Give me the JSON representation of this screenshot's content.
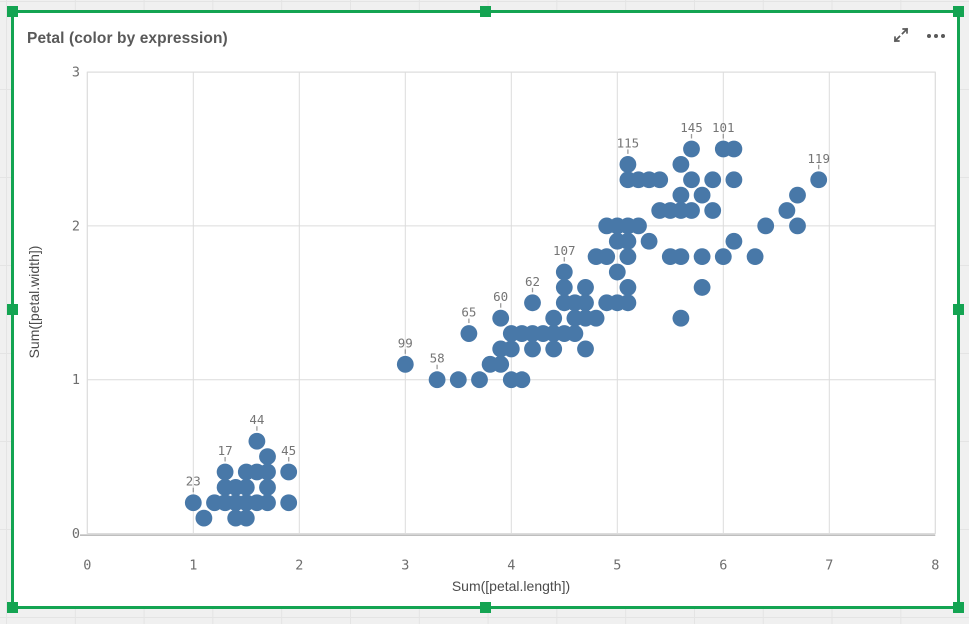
{
  "colors": {
    "selection_green": "#14a452",
    "point_blue": "#4878a8",
    "title_gray": "#595959",
    "gridline_gray": "#dcdcdc",
    "axis_line_gray": "#a9a9a9"
  },
  "chart": {
    "title": "Petal (color by expression)",
    "toolbar_icons": [
      "expand",
      "more-menu"
    ]
  },
  "chart_data": {
    "type": "scatter",
    "title": "Petal (color by expression)",
    "xlabel": "Sum([petal.length])",
    "ylabel": "Sum([petal.width])",
    "xlim": [
      0,
      8
    ],
    "ylim": [
      0,
      3
    ],
    "xticks": [
      0,
      1,
      2,
      3,
      4,
      5,
      6,
      7,
      8
    ],
    "yticks": [
      0,
      1,
      2,
      3
    ],
    "grid": true,
    "point_color": "#4878a8",
    "point_radius": 8.4,
    "points": [
      {
        "x": 1.0,
        "y": 0.2,
        "label": "23"
      },
      {
        "x": 1.1,
        "y": 0.1
      },
      {
        "x": 1.2,
        "y": 0.2
      },
      {
        "x": 1.3,
        "y": 0.2
      },
      {
        "x": 1.3,
        "y": 0.3
      },
      {
        "x": 1.3,
        "y": 0.4,
        "label": "17"
      },
      {
        "x": 1.4,
        "y": 0.1
      },
      {
        "x": 1.4,
        "y": 0.2
      },
      {
        "x": 1.4,
        "y": 0.3
      },
      {
        "x": 1.5,
        "y": 0.1
      },
      {
        "x": 1.5,
        "y": 0.2
      },
      {
        "x": 1.5,
        "y": 0.3
      },
      {
        "x": 1.5,
        "y": 0.4
      },
      {
        "x": 1.6,
        "y": 0.2
      },
      {
        "x": 1.6,
        "y": 0.4
      },
      {
        "x": 1.6,
        "y": 0.6,
        "label": "44"
      },
      {
        "x": 1.7,
        "y": 0.2
      },
      {
        "x": 1.7,
        "y": 0.3
      },
      {
        "x": 1.7,
        "y": 0.4
      },
      {
        "x": 1.7,
        "y": 0.5
      },
      {
        "x": 1.9,
        "y": 0.2
      },
      {
        "x": 1.9,
        "y": 0.4,
        "label": "45"
      },
      {
        "x": 3.0,
        "y": 1.1,
        "label": "99"
      },
      {
        "x": 3.3,
        "y": 1.0,
        "label": "58"
      },
      {
        "x": 3.5,
        "y": 1.0
      },
      {
        "x": 3.6,
        "y": 1.3,
        "label": "65"
      },
      {
        "x": 3.7,
        "y": 1.0
      },
      {
        "x": 3.8,
        "y": 1.1
      },
      {
        "x": 3.9,
        "y": 1.1
      },
      {
        "x": 3.9,
        "y": 1.2
      },
      {
        "x": 3.9,
        "y": 1.4,
        "label": "60"
      },
      {
        "x": 4.0,
        "y": 1.0
      },
      {
        "x": 4.0,
        "y": 1.2
      },
      {
        "x": 4.0,
        "y": 1.3
      },
      {
        "x": 4.1,
        "y": 1.0
      },
      {
        "x": 4.1,
        "y": 1.3
      },
      {
        "x": 4.2,
        "y": 1.2
      },
      {
        "x": 4.2,
        "y": 1.3
      },
      {
        "x": 4.2,
        "y": 1.5,
        "label": "62"
      },
      {
        "x": 4.3,
        "y": 1.3
      },
      {
        "x": 4.4,
        "y": 1.2
      },
      {
        "x": 4.4,
        "y": 1.3
      },
      {
        "x": 4.4,
        "y": 1.4
      },
      {
        "x": 4.5,
        "y": 1.3
      },
      {
        "x": 4.5,
        "y": 1.5
      },
      {
        "x": 4.5,
        "y": 1.6
      },
      {
        "x": 4.5,
        "y": 1.7,
        "label": "107"
      },
      {
        "x": 4.6,
        "y": 1.3
      },
      {
        "x": 4.6,
        "y": 1.4
      },
      {
        "x": 4.6,
        "y": 1.5
      },
      {
        "x": 4.7,
        "y": 1.2
      },
      {
        "x": 4.7,
        "y": 1.4
      },
      {
        "x": 4.7,
        "y": 1.5
      },
      {
        "x": 4.7,
        "y": 1.6
      },
      {
        "x": 4.8,
        "y": 1.4
      },
      {
        "x": 4.8,
        "y": 1.8
      },
      {
        "x": 4.9,
        "y": 1.5
      },
      {
        "x": 5.0,
        "y": 1.7
      },
      {
        "x": 5.1,
        "y": 1.6
      },
      {
        "x": 4.9,
        "y": 1.8
      },
      {
        "x": 4.9,
        "y": 2.0
      },
      {
        "x": 5.0,
        "y": 1.5
      },
      {
        "x": 5.0,
        "y": 1.9
      },
      {
        "x": 5.0,
        "y": 2.0
      },
      {
        "x": 5.1,
        "y": 1.5
      },
      {
        "x": 5.1,
        "y": 1.8
      },
      {
        "x": 5.1,
        "y": 1.9
      },
      {
        "x": 5.1,
        "y": 2.0
      },
      {
        "x": 5.1,
        "y": 2.3
      },
      {
        "x": 5.1,
        "y": 2.4,
        "label": "115"
      },
      {
        "x": 5.2,
        "y": 2.0
      },
      {
        "x": 5.2,
        "y": 2.3
      },
      {
        "x": 5.3,
        "y": 1.9
      },
      {
        "x": 5.3,
        "y": 2.3
      },
      {
        "x": 5.4,
        "y": 2.1
      },
      {
        "x": 5.4,
        "y": 2.3
      },
      {
        "x": 5.5,
        "y": 1.8
      },
      {
        "x": 5.5,
        "y": 2.1
      },
      {
        "x": 5.6,
        "y": 1.4
      },
      {
        "x": 5.6,
        "y": 1.8
      },
      {
        "x": 5.6,
        "y": 2.1
      },
      {
        "x": 5.6,
        "y": 2.2
      },
      {
        "x": 5.6,
        "y": 2.4
      },
      {
        "x": 5.7,
        "y": 2.1
      },
      {
        "x": 5.7,
        "y": 2.3
      },
      {
        "x": 5.7,
        "y": 2.5,
        "label": "145"
      },
      {
        "x": 5.8,
        "y": 1.6
      },
      {
        "x": 5.8,
        "y": 1.8
      },
      {
        "x": 5.8,
        "y": 2.2
      },
      {
        "x": 5.9,
        "y": 2.1
      },
      {
        "x": 5.9,
        "y": 2.3
      },
      {
        "x": 6.0,
        "y": 1.8
      },
      {
        "x": 6.0,
        "y": 2.5,
        "label": "101"
      },
      {
        "x": 6.1,
        "y": 1.9
      },
      {
        "x": 6.1,
        "y": 2.3
      },
      {
        "x": 6.1,
        "y": 2.5
      },
      {
        "x": 6.3,
        "y": 1.8
      },
      {
        "x": 6.4,
        "y": 2.0
      },
      {
        "x": 6.6,
        "y": 2.1
      },
      {
        "x": 6.7,
        "y": 2.0
      },
      {
        "x": 6.7,
        "y": 2.2
      },
      {
        "x": 6.9,
        "y": 2.3,
        "label": "119"
      }
    ]
  }
}
